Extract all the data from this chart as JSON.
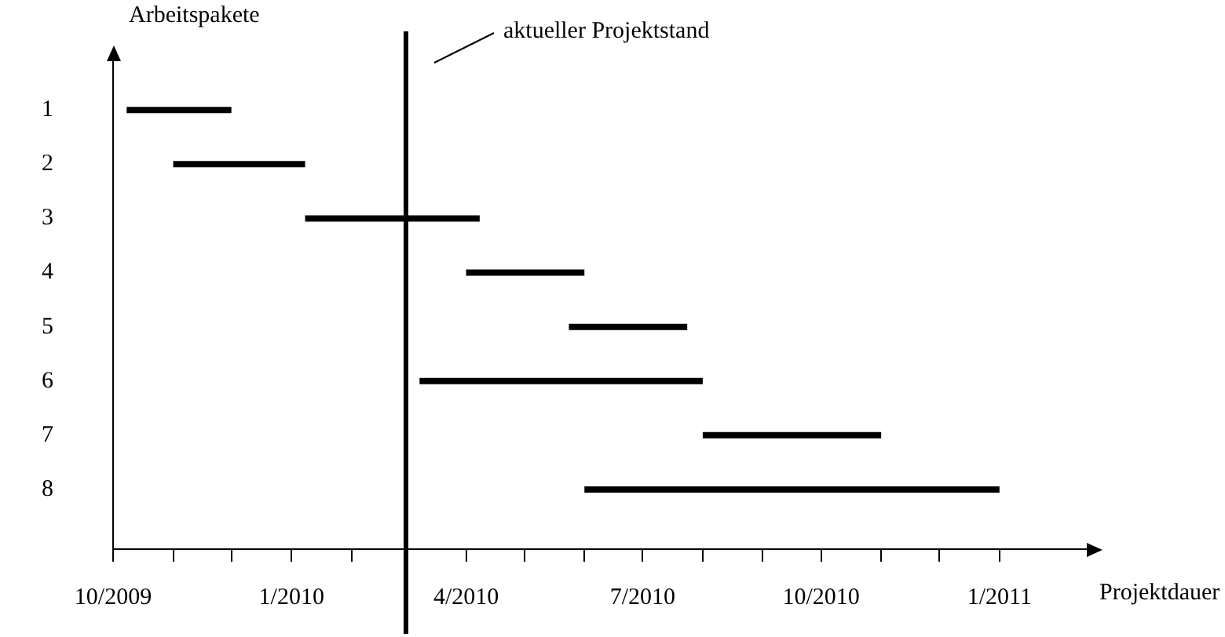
{
  "chart_data": {
    "type": "line",
    "ylabel": "Arbeitspakete",
    "xlabel": "Projektdauer",
    "marker": "none",
    "line_style": "solid",
    "series": [
      {
        "color": "#000000",
        "x": [
          "2009-10-08",
          "2009-12-01"
        ],
        "values": [
          1,
          1
        ]
      },
      {
        "color": "#000000",
        "x": [
          "2009-11-01",
          "2010-01-08"
        ],
        "values": [
          2,
          2
        ]
      },
      {
        "color": "#000000",
        "x": [
          "2010-01-08",
          "2010-04-08"
        ],
        "values": [
          3,
          3
        ]
      },
      {
        "color": "#000000",
        "x": [
          "2010-04-01",
          "2010-06-01"
        ],
        "values": [
          4,
          4
        ]
      },
      {
        "color": "#000000",
        "x": [
          "2010-05-24",
          "2010-07-24"
        ],
        "values": [
          5,
          5
        ]
      },
      {
        "color": "#000000",
        "x": [
          "2010-03-08",
          "2010-08-01"
        ],
        "values": [
          6,
          6
        ]
      },
      {
        "color": "#000000",
        "x": [
          "2010-08-01",
          "2010-11-01"
        ],
        "values": [
          7,
          7
        ]
      },
      {
        "color": "#000000",
        "x": [
          "2010-06-01",
          "2011-01-01"
        ],
        "values": [
          8,
          8
        ]
      }
    ],
    "xlim": [
      "2009-10-01",
      "2011-02-15"
    ],
    "ylim": [
      9.1,
      0.1
    ],
    "yticks": [
      1,
      2,
      3,
      4,
      5,
      6,
      7,
      8
    ],
    "xticks": [
      {
        "value": "2009-10",
        "label": "10/2009"
      },
      {
        "value": "2009-11",
        "label": null
      },
      {
        "value": "2009-12",
        "label": null
      },
      {
        "value": "2010-01",
        "label": "1/2010"
      },
      {
        "value": "2010-02",
        "label": null
      },
      {
        "value": "2010-03",
        "label": null
      },
      {
        "value": "2010-04",
        "label": "4/2010"
      },
      {
        "value": "2010-05",
        "label": null
      },
      {
        "value": "2010-06",
        "label": null
      },
      {
        "value": "2010-07",
        "label": "7/2010"
      },
      {
        "value": "2010-08",
        "label": null
      },
      {
        "value": "2010-09",
        "label": null
      },
      {
        "value": "2010-10",
        "label": "10/2010"
      },
      {
        "value": "2010-11",
        "label": null
      },
      {
        "value": "2010-12",
        "label": null
      },
      {
        "value": "2011-01",
        "label": "1/2011"
      }
    ],
    "ref_lines": [
      {
        "axis": "x",
        "value": "2010-03-01",
        "label": "aktueller Projektstand",
        "color": "#000000",
        "line_style": "solid"
      }
    ]
  }
}
